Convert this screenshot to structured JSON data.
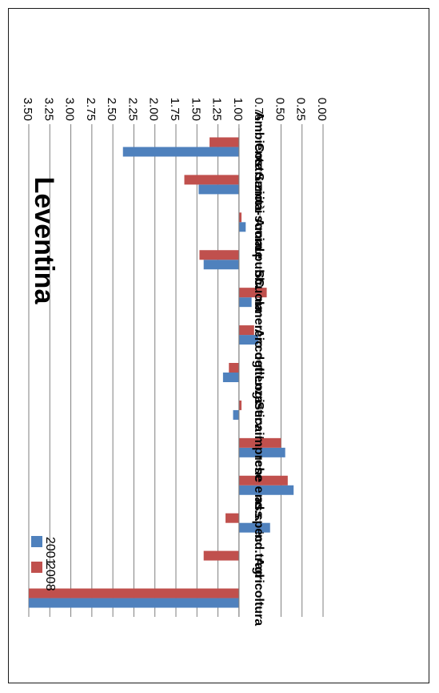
{
  "chart_data": {
    "type": "bar",
    "orientation": "horizontal",
    "title": "Leventina",
    "categories": [
      "Agricoltura",
      "Ind.trad",
      "Ind.spec",
      "Banche e ass.",
      "Serv.imprese",
      "Logistica",
      "Accoglienza",
      "Commercio dett.",
      "Scuola",
      "Amm.pubb.",
      "Sanità-sociale",
      "Costruzioni",
      "Ambiente"
    ],
    "series": [
      {
        "name": "2001",
        "color": "#4f81bd",
        "values": [
          3.5,
          1.0,
          0.63,
          0.35,
          0.45,
          1.07,
          1.19,
          0.77,
          0.85,
          1.42,
          0.92,
          1.48,
          2.38
        ]
      },
      {
        "name": "2008",
        "color": "#c0504d",
        "values": [
          3.5,
          1.42,
          1.16,
          0.42,
          0.5,
          0.97,
          1.12,
          0.82,
          0.67,
          1.47,
          0.97,
          1.65,
          1.35
        ]
      }
    ],
    "xlim": [
      0,
      3.5
    ],
    "ticks": [
      "0.00",
      "0.25",
      "0.50",
      "0.75",
      "1.00",
      "1.25",
      "1.50",
      "1.75",
      "2.00",
      "2.25",
      "2.50",
      "2.75",
      "3.00",
      "3.25",
      "3.50"
    ],
    "baseline": 1.0,
    "grid": true,
    "legend_position": "top-right",
    "rotation": "180"
  }
}
